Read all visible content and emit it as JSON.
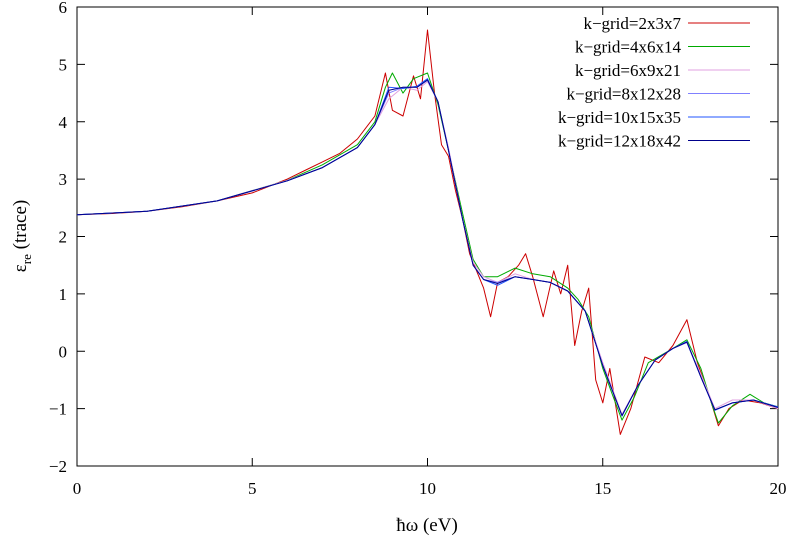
{
  "chart_data": {
    "type": "line",
    "title": "",
    "xlabel": "ħω (eV)",
    "ylabel_main": "ε",
    "ylabel_sub": "re",
    "ylabel_rest": " (trace)",
    "xlim": [
      0,
      20
    ],
    "ylim": [
      -2,
      6
    ],
    "xticks": [
      0,
      5,
      10,
      15,
      20
    ],
    "yticks": [
      -2,
      -1,
      0,
      1,
      2,
      3,
      4,
      5,
      6
    ],
    "grid": false,
    "legend_position": "top-right",
    "series": [
      {
        "name": "k−grid=2x3x7",
        "color": "#cc0000",
        "points": [
          [
            0,
            2.38
          ],
          [
            1,
            2.4
          ],
          [
            2,
            2.44
          ],
          [
            3,
            2.52
          ],
          [
            4,
            2.62
          ],
          [
            5,
            2.76
          ],
          [
            6,
            3.0
          ],
          [
            6.5,
            3.15
          ],
          [
            7,
            3.3
          ],
          [
            7.5,
            3.45
          ],
          [
            8,
            3.7
          ],
          [
            8.5,
            4.1
          ],
          [
            8.8,
            4.85
          ],
          [
            9.0,
            4.2
          ],
          [
            9.3,
            4.1
          ],
          [
            9.6,
            4.8
          ],
          [
            9.8,
            4.4
          ],
          [
            10.0,
            5.6
          ],
          [
            10.2,
            4.5
          ],
          [
            10.4,
            3.6
          ],
          [
            10.6,
            3.4
          ],
          [
            10.8,
            2.8
          ],
          [
            11.0,
            2.3
          ],
          [
            11.2,
            1.7
          ],
          [
            11.4,
            1.4
          ],
          [
            11.6,
            1.1
          ],
          [
            11.8,
            0.6
          ],
          [
            12.0,
            1.2
          ],
          [
            12.3,
            1.3
          ],
          [
            12.6,
            1.5
          ],
          [
            12.8,
            1.7
          ],
          [
            13.0,
            1.3
          ],
          [
            13.3,
            0.6
          ],
          [
            13.6,
            1.4
          ],
          [
            13.8,
            1.0
          ],
          [
            14.0,
            1.5
          ],
          [
            14.2,
            0.1
          ],
          [
            14.4,
            0.7
          ],
          [
            14.6,
            1.1
          ],
          [
            14.8,
            -0.5
          ],
          [
            15.0,
            -0.9
          ],
          [
            15.2,
            -0.3
          ],
          [
            15.5,
            -1.45
          ],
          [
            15.8,
            -1.0
          ],
          [
            16.2,
            -0.1
          ],
          [
            16.6,
            -0.2
          ],
          [
            17.0,
            0.1
          ],
          [
            17.4,
            0.55
          ],
          [
            17.7,
            -0.2
          ],
          [
            18.0,
            -0.7
          ],
          [
            18.3,
            -1.3
          ],
          [
            18.6,
            -1.0
          ],
          [
            19.0,
            -0.85
          ],
          [
            19.5,
            -0.9
          ],
          [
            20,
            -1.0
          ]
        ]
      },
      {
        "name": "k−grid=4x6x14",
        "color": "#00aa00",
        "points": [
          [
            0,
            2.38
          ],
          [
            2,
            2.44
          ],
          [
            4,
            2.62
          ],
          [
            6,
            2.98
          ],
          [
            7,
            3.25
          ],
          [
            8,
            3.6
          ],
          [
            8.5,
            4.0
          ],
          [
            8.8,
            4.6
          ],
          [
            9.0,
            4.85
          ],
          [
            9.3,
            4.5
          ],
          [
            9.6,
            4.75
          ],
          [
            10.0,
            4.85
          ],
          [
            10.3,
            4.3
          ],
          [
            10.6,
            3.5
          ],
          [
            11.0,
            2.4
          ],
          [
            11.3,
            1.6
          ],
          [
            11.6,
            1.3
          ],
          [
            12.0,
            1.3
          ],
          [
            12.5,
            1.45
          ],
          [
            13.0,
            1.35
          ],
          [
            13.5,
            1.3
          ],
          [
            14.0,
            1.1
          ],
          [
            14.3,
            0.9
          ],
          [
            14.6,
            0.6
          ],
          [
            15.0,
            -0.3
          ],
          [
            15.3,
            -0.8
          ],
          [
            15.55,
            -1.2
          ],
          [
            15.9,
            -0.8
          ],
          [
            16.3,
            -0.2
          ],
          [
            17.0,
            0.05
          ],
          [
            17.4,
            0.2
          ],
          [
            17.8,
            -0.3
          ],
          [
            18.1,
            -0.9
          ],
          [
            18.3,
            -1.25
          ],
          [
            18.7,
            -0.95
          ],
          [
            19.2,
            -0.75
          ],
          [
            19.6,
            -0.9
          ],
          [
            20,
            -0.97
          ]
        ]
      },
      {
        "name": "k−grid=6x9x21",
        "color": "#e0a0e0",
        "points": [
          [
            0,
            2.38
          ],
          [
            2,
            2.44
          ],
          [
            4,
            2.62
          ],
          [
            6,
            2.98
          ],
          [
            7,
            3.2
          ],
          [
            8,
            3.55
          ],
          [
            8.5,
            3.95
          ],
          [
            8.9,
            4.4
          ],
          [
            9.3,
            4.6
          ],
          [
            9.7,
            4.55
          ],
          [
            10.0,
            4.7
          ],
          [
            10.3,
            4.35
          ],
          [
            10.6,
            3.55
          ],
          [
            11.0,
            2.3
          ],
          [
            11.3,
            1.55
          ],
          [
            11.6,
            1.3
          ],
          [
            12.0,
            1.2
          ],
          [
            12.5,
            1.35
          ],
          [
            13.0,
            1.25
          ],
          [
            13.5,
            1.2
          ],
          [
            14.0,
            1.05
          ],
          [
            14.5,
            0.7
          ],
          [
            15.0,
            -0.2
          ],
          [
            15.55,
            -1.1
          ],
          [
            16.0,
            -0.6
          ],
          [
            16.5,
            -0.15
          ],
          [
            17.0,
            0.05
          ],
          [
            17.4,
            0.15
          ],
          [
            17.8,
            -0.4
          ],
          [
            18.2,
            -1.0
          ],
          [
            18.7,
            -0.85
          ],
          [
            19.3,
            -0.85
          ],
          [
            20,
            -1.0
          ]
        ]
      },
      {
        "name": "k−grid=8x12x28",
        "color": "#8080ff",
        "points": [
          [
            0,
            2.38
          ],
          [
            2,
            2.44
          ],
          [
            4,
            2.62
          ],
          [
            6,
            2.97
          ],
          [
            7,
            3.2
          ],
          [
            8,
            3.55
          ],
          [
            8.5,
            3.95
          ],
          [
            8.9,
            4.5
          ],
          [
            9.3,
            4.6
          ],
          [
            9.7,
            4.6
          ],
          [
            10.0,
            4.72
          ],
          [
            10.3,
            4.35
          ],
          [
            10.6,
            3.5
          ],
          [
            11.0,
            2.3
          ],
          [
            11.3,
            1.5
          ],
          [
            11.6,
            1.25
          ],
          [
            12.0,
            1.2
          ],
          [
            12.5,
            1.3
          ],
          [
            13.0,
            1.25
          ],
          [
            13.5,
            1.2
          ],
          [
            14.0,
            1.05
          ],
          [
            14.5,
            0.7
          ],
          [
            15.0,
            -0.25
          ],
          [
            15.55,
            -1.12
          ],
          [
            16.0,
            -0.6
          ],
          [
            16.5,
            -0.15
          ],
          [
            17.0,
            0.05
          ],
          [
            17.4,
            0.15
          ],
          [
            17.8,
            -0.45
          ],
          [
            18.2,
            -1.02
          ],
          [
            18.7,
            -0.9
          ],
          [
            19.3,
            -0.85
          ],
          [
            20,
            -0.98
          ]
        ]
      },
      {
        "name": "k−grid=10x15x35",
        "color": "#2255ff",
        "points": [
          [
            0,
            2.38
          ],
          [
            2,
            2.44
          ],
          [
            4,
            2.62
          ],
          [
            6,
            2.97
          ],
          [
            7,
            3.2
          ],
          [
            8,
            3.55
          ],
          [
            8.5,
            3.95
          ],
          [
            8.9,
            4.6
          ],
          [
            9.3,
            4.58
          ],
          [
            9.7,
            4.62
          ],
          [
            10.0,
            4.75
          ],
          [
            10.3,
            4.35
          ],
          [
            10.6,
            3.5
          ],
          [
            11.0,
            2.3
          ],
          [
            11.3,
            1.5
          ],
          [
            11.6,
            1.25
          ],
          [
            12.0,
            1.15
          ],
          [
            12.5,
            1.3
          ],
          [
            13.0,
            1.25
          ],
          [
            13.5,
            1.2
          ],
          [
            14.0,
            1.05
          ],
          [
            14.5,
            0.7
          ],
          [
            15.0,
            -0.25
          ],
          [
            15.55,
            -1.13
          ],
          [
            16.0,
            -0.6
          ],
          [
            16.5,
            -0.15
          ],
          [
            17.0,
            0.05
          ],
          [
            17.4,
            0.17
          ],
          [
            17.8,
            -0.45
          ],
          [
            18.2,
            -1.03
          ],
          [
            18.7,
            -0.9
          ],
          [
            19.3,
            -0.85
          ],
          [
            20,
            -0.97
          ]
        ]
      },
      {
        "name": "k−grid=12x18x42",
        "color": "#00008b",
        "points": [
          [
            0,
            2.38
          ],
          [
            2,
            2.44
          ],
          [
            4,
            2.62
          ],
          [
            6,
            2.97
          ],
          [
            7,
            3.2
          ],
          [
            8,
            3.55
          ],
          [
            8.5,
            3.95
          ],
          [
            8.9,
            4.55
          ],
          [
            9.3,
            4.6
          ],
          [
            9.7,
            4.6
          ],
          [
            10.0,
            4.73
          ],
          [
            10.3,
            4.35
          ],
          [
            10.6,
            3.5
          ],
          [
            11.0,
            2.3
          ],
          [
            11.3,
            1.5
          ],
          [
            11.6,
            1.25
          ],
          [
            12.0,
            1.18
          ],
          [
            12.5,
            1.3
          ],
          [
            13.0,
            1.25
          ],
          [
            13.5,
            1.2
          ],
          [
            14.0,
            1.05
          ],
          [
            14.5,
            0.7
          ],
          [
            15.0,
            -0.25
          ],
          [
            15.55,
            -1.12
          ],
          [
            16.0,
            -0.6
          ],
          [
            16.5,
            -0.15
          ],
          [
            17.0,
            0.05
          ],
          [
            17.4,
            0.16
          ],
          [
            17.8,
            -0.45
          ],
          [
            18.2,
            -1.02
          ],
          [
            18.7,
            -0.9
          ],
          [
            19.3,
            -0.85
          ],
          [
            20,
            -0.98
          ]
        ]
      }
    ]
  }
}
